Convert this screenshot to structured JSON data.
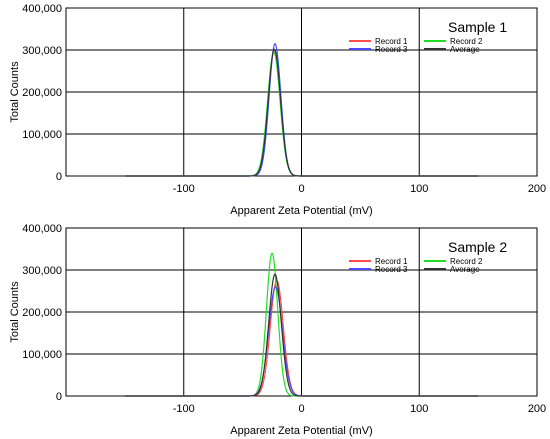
{
  "chart_data": [
    {
      "type": "line",
      "annotation": "Sample 1",
      "xlabel": "Apparent Zeta Potential (mV)",
      "ylabel": "Total Counts",
      "xlim": [
        -200,
        200
      ],
      "ylim": [
        0,
        400000
      ],
      "x_ticks": [
        "-100",
        "0",
        "100",
        "200"
      ],
      "y_ticks": [
        "0",
        "100,000",
        "200,000",
        "300,000",
        "400,000"
      ],
      "grid": true,
      "legend_position": "top-right",
      "baseline_x_range": [
        -150,
        150
      ],
      "series": [
        {
          "name": "Record 1",
          "color": "#ff4b4b",
          "peak_x": -23,
          "peak_y": 300000,
          "width": 5.2
        },
        {
          "name": "Record 2",
          "color": "#22dd22",
          "peak_x": -23.5,
          "peak_y": 295000,
          "width": 5.3
        },
        {
          "name": "Record 3",
          "color": "#4b4bff",
          "peak_x": -22.5,
          "peak_y": 315000,
          "width": 5.0
        },
        {
          "name": "Average",
          "color": "#333333",
          "peak_x": -23,
          "peak_y": 302000,
          "width": 5.2
        }
      ]
    },
    {
      "type": "line",
      "annotation": "Sample 2",
      "xlabel": "Apparent Zeta Potential (mV)",
      "ylabel": "Total Counts",
      "xlim": [
        -200,
        200
      ],
      "ylim": [
        0,
        400000
      ],
      "x_ticks": [
        "-100",
        "0",
        "100",
        "200"
      ],
      "y_ticks": [
        "0",
        "100,000",
        "200,000",
        "300,000",
        "400,000"
      ],
      "grid": true,
      "legend_position": "top-right",
      "baseline_x_range": [
        -150,
        150
      ],
      "series": [
        {
          "name": "Record 1",
          "color": "#ff4b4b",
          "peak_x": -21,
          "peak_y": 275000,
          "width": 5.5
        },
        {
          "name": "Record 2",
          "color": "#22dd22",
          "peak_x": -25,
          "peak_y": 340000,
          "width": 4.8
        },
        {
          "name": "Record 3",
          "color": "#4b4bff",
          "peak_x": -22,
          "peak_y": 260000,
          "width": 5.8
        },
        {
          "name": "Average",
          "color": "#333333",
          "peak_x": -22.5,
          "peak_y": 290000,
          "width": 5.3
        }
      ]
    }
  ]
}
